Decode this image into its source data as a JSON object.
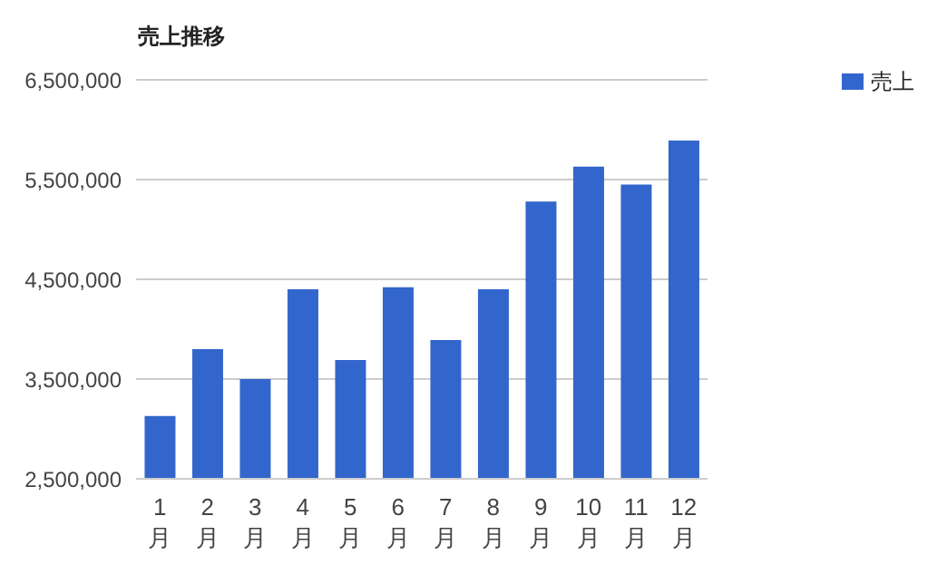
{
  "chart_data": {
    "type": "bar",
    "title": "売上推移",
    "categories": [
      "1月",
      "2月",
      "3月",
      "4月",
      "5月",
      "6月",
      "7月",
      "8月",
      "9月",
      "10月",
      "11月",
      "12月"
    ],
    "series": [
      {
        "name": "売上",
        "color": "#3366cc",
        "values": [
          3130000,
          3800000,
          3500000,
          4400000,
          3690000,
          4420000,
          3890000,
          4400000,
          5280000,
          5630000,
          5450000,
          5890000
        ]
      }
    ],
    "ylim": [
      2500000,
      6500000
    ],
    "yticks": [
      {
        "value": 2500000,
        "label": "2,500,000"
      },
      {
        "value": 3500000,
        "label": "3,500,000"
      },
      {
        "value": 4500000,
        "label": "4,500,000"
      },
      {
        "value": 5500000,
        "label": "5,500,000"
      },
      {
        "value": 6500000,
        "label": "6,500,000"
      }
    ],
    "grid": "y",
    "legend": "top right"
  }
}
